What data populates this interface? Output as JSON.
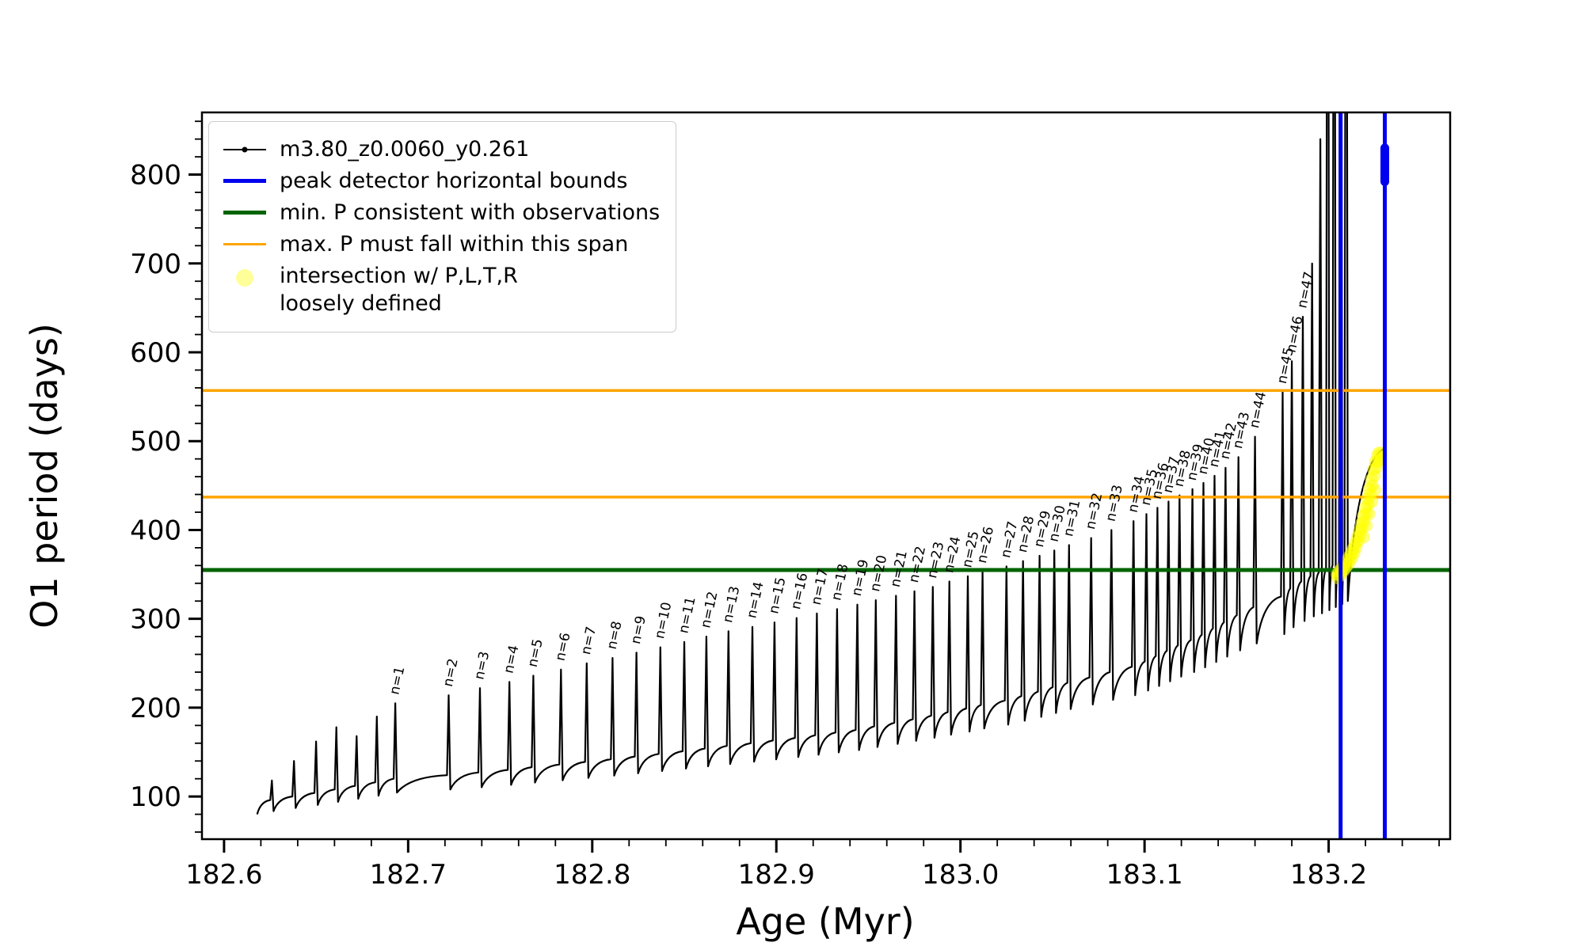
{
  "figure": {
    "xlabel": "Age (Myr)",
    "ylabel": "O1 period (days)"
  },
  "legend": {
    "items": [
      {
        "label": "m3.80_z0.0060_y0.261",
        "swatch": "line-dot",
        "color": "#000000"
      },
      {
        "label": "peak detector horizontal bounds",
        "swatch": "line-thick",
        "color": "#0000ee"
      },
      {
        "label": "min. P consistent with observations",
        "swatch": "line-thick",
        "color": "#006400"
      },
      {
        "label": "max. P must fall within this span",
        "swatch": "line",
        "color": "#ffa500"
      },
      {
        "label": "intersection w/ P,L,T,R\nloosely defined",
        "swatch": "dot",
        "color": "#ffff00"
      }
    ]
  },
  "chart_data": {
    "type": "line",
    "title": "",
    "xlabel": "Age (Myr)",
    "ylabel": "O1 period (days)",
    "xlim": [
      182.588,
      183.266
    ],
    "ylim": [
      52,
      870
    ],
    "x_major_ticks": [
      182.6,
      182.7,
      182.8,
      182.9,
      183.0,
      183.1,
      183.2
    ],
    "x_tick_labels": [
      "182.6",
      "182.7",
      "182.8",
      "182.9",
      "183.0",
      "183.1",
      "183.2"
    ],
    "x_minor_step": 0.02,
    "y_major_ticks": [
      100,
      200,
      300,
      400,
      500,
      600,
      700,
      800
    ],
    "y_minor_step": 20,
    "series": {
      "name": "m3.80_z0.0060_y0.261",
      "color": "#000000",
      "start": [
        182.618,
        80
      ],
      "end": [
        183.2305,
        492
      ],
      "pulses": [
        [
          null,
          182.626,
          96,
          118
        ],
        [
          null,
          182.638,
          100,
          140
        ],
        [
          null,
          182.65,
          104,
          162
        ],
        [
          null,
          182.661,
          108,
          178
        ],
        [
          null,
          182.672,
          112,
          168
        ],
        [
          null,
          182.683,
          116,
          190
        ],
        [
          1,
          182.693,
          120,
          205
        ],
        [
          2,
          182.722,
          124,
          214
        ],
        [
          3,
          182.739,
          127,
          222
        ],
        [
          4,
          182.755,
          130,
          229
        ],
        [
          5,
          182.768,
          133,
          236
        ],
        [
          6,
          182.783,
          136,
          243
        ],
        [
          7,
          182.797,
          139,
          250
        ],
        [
          8,
          182.811,
          142,
          256
        ],
        [
          9,
          182.824,
          145,
          262
        ],
        [
          10,
          182.837,
          148,
          268
        ],
        [
          11,
          182.85,
          151,
          274
        ],
        [
          12,
          182.862,
          154,
          280
        ],
        [
          13,
          182.874,
          157,
          286
        ],
        [
          14,
          182.887,
          160,
          291
        ],
        [
          15,
          182.899,
          163,
          296
        ],
        [
          16,
          182.911,
          166,
          301
        ],
        [
          17,
          182.922,
          169,
          306
        ],
        [
          18,
          182.933,
          172,
          311
        ],
        [
          19,
          182.944,
          175,
          316
        ],
        [
          20,
          182.954,
          179,
          321
        ],
        [
          21,
          182.965,
          183,
          326
        ],
        [
          22,
          182.975,
          187,
          331
        ],
        [
          23,
          182.985,
          191,
          336
        ],
        [
          24,
          182.994,
          195,
          342
        ],
        [
          25,
          183.004,
          199,
          348
        ],
        [
          26,
          183.012,
          203,
          353
        ],
        [
          27,
          183.025,
          208,
          359
        ],
        [
          28,
          183.034,
          213,
          365
        ],
        [
          29,
          183.043,
          218,
          371
        ],
        [
          30,
          183.051,
          223,
          377
        ],
        [
          31,
          183.059,
          228,
          383
        ],
        [
          32,
          183.071,
          234,
          391
        ],
        [
          33,
          183.082,
          240,
          400
        ],
        [
          34,
          183.094,
          246,
          410
        ],
        [
          35,
          183.101,
          252,
          418
        ],
        [
          36,
          183.107,
          258,
          425
        ],
        [
          37,
          183.113,
          264,
          432
        ],
        [
          38,
          183.119,
          270,
          439
        ],
        [
          39,
          183.126,
          276,
          446
        ],
        [
          40,
          183.132,
          282,
          453
        ],
        [
          41,
          183.138,
          289,
          461
        ],
        [
          42,
          183.144,
          296,
          470
        ],
        [
          43,
          183.151,
          304,
          482
        ],
        [
          44,
          183.16,
          313,
          505
        ],
        [
          45,
          183.175,
          325,
          555
        ],
        [
          46,
          183.18,
          334,
          590
        ],
        [
          47,
          183.186,
          342,
          640
        ],
        [
          null,
          183.191,
          348,
          700
        ],
        [
          null,
          183.1955,
          352,
          840
        ],
        [
          null,
          183.1995,
          356,
          1600
        ],
        [
          null,
          183.203,
          360,
          1600
        ],
        [
          null,
          183.2065,
          364,
          1600
        ],
        [
          null,
          183.2095,
          368,
          1600
        ]
      ]
    },
    "hlines": [
      {
        "name": "min-p-line",
        "y": 355,
        "color": "#006400",
        "width": 5
      },
      {
        "name": "max-p-span-lower",
        "y": 437,
        "color": "#ffa500",
        "width": 3.5
      },
      {
        "name": "max-p-span-upper",
        "y": 557,
        "color": "#ffa500",
        "width": 3.5
      }
    ],
    "vlines": [
      {
        "name": "peak-bound-left",
        "x": 183.2065,
        "color": "#0000ee",
        "width": 5
      },
      {
        "name": "peak-bound-right",
        "x": 183.2305,
        "color": "#0000ee",
        "width": 5
      }
    ],
    "peak_marker": {
      "x": 183.2305,
      "y1": 792,
      "y2": 830,
      "color": "#0000ee",
      "width": 11
    },
    "intersection": {
      "color": "#ffff00",
      "points": [
        [
          183.2045,
          350
        ],
        [
          183.205,
          346
        ],
        [
          183.2056,
          353
        ],
        [
          183.2061,
          349
        ],
        [
          183.2067,
          356
        ],
        [
          183.2072,
          352
        ],
        [
          183.2078,
          359
        ],
        [
          183.2083,
          355
        ],
        [
          183.2089,
          362
        ],
        [
          183.2094,
          358
        ],
        [
          183.21,
          366
        ],
        [
          183.2105,
          361
        ],
        [
          183.2111,
          370
        ],
        [
          183.2116,
          365
        ],
        [
          183.2122,
          374
        ],
        [
          183.2127,
          369
        ],
        [
          183.2133,
          379
        ],
        [
          183.2138,
          374
        ],
        [
          183.2144,
          385
        ],
        [
          183.2149,
          380
        ],
        [
          183.2155,
          392
        ],
        [
          183.216,
          387
        ],
        [
          183.2166,
          399
        ],
        [
          183.2171,
          394
        ],
        [
          183.2177,
          407
        ],
        [
          183.2182,
          402
        ],
        [
          183.2188,
          416
        ],
        [
          183.2193,
          410
        ],
        [
          183.2199,
          425
        ],
        [
          183.2204,
          419
        ],
        [
          183.221,
          435
        ],
        [
          183.2215,
          429
        ],
        [
          183.2221,
          446
        ],
        [
          183.2226,
          440
        ],
        [
          183.2232,
          457
        ],
        [
          183.2237,
          450
        ],
        [
          183.2243,
          468
        ],
        [
          183.2248,
          461
        ],
        [
          183.2254,
          477
        ],
        [
          183.2259,
          470
        ],
        [
          183.2264,
          484
        ],
        [
          183.2269,
          477
        ],
        [
          183.2274,
          487
        ],
        [
          183.2279,
          480
        ],
        [
          183.2284,
          486
        ],
        [
          183.225,
          445
        ],
        [
          183.2235,
          432
        ],
        [
          183.222,
          418
        ],
        [
          183.2205,
          405
        ],
        [
          183.219,
          392
        ]
      ]
    },
    "pulse_label_prefix": "n="
  }
}
